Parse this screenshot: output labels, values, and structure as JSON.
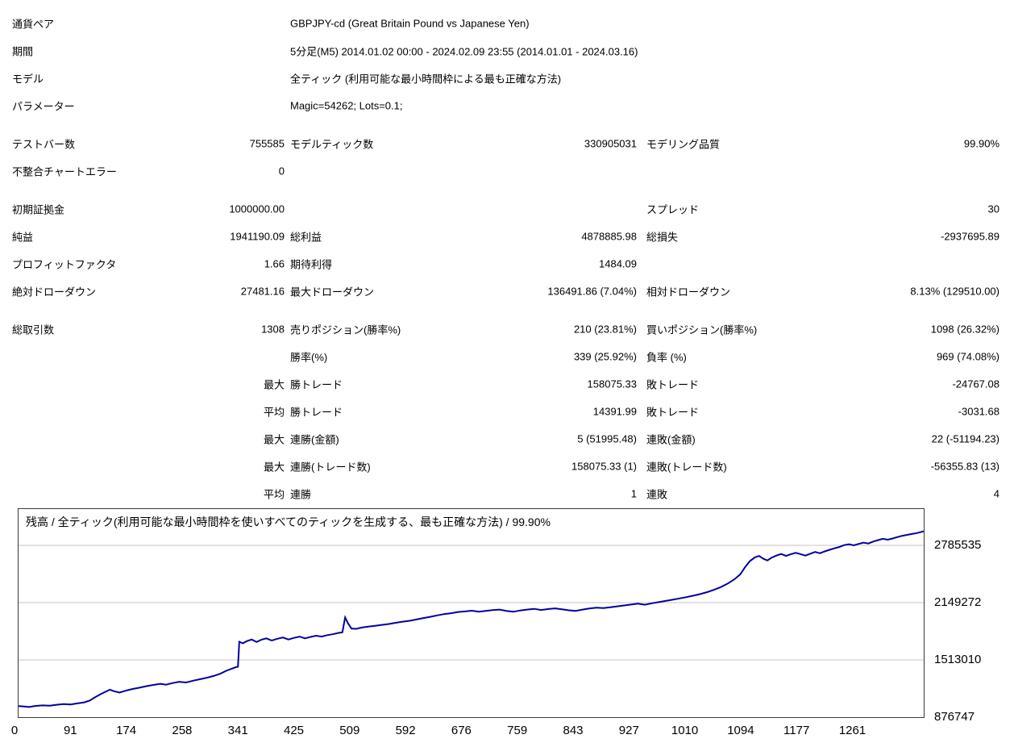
{
  "header": {
    "rows": [
      {
        "label": "通貨ペア",
        "value": "GBPJPY-cd (Great Britain Pound vs Japanese Yen)"
      },
      {
        "label": "期間",
        "value": "5分足(M5) 2014.01.02 00:00 - 2024.02.09 23:55 (2014.01.01 - 2024.03.16)"
      },
      {
        "label": "モデル",
        "value": "全ティック (利用可能な最小時間枠による最も正確な方法)"
      },
      {
        "label": "パラメーター",
        "value": "Magic=54262; Lots=0.1;"
      }
    ]
  },
  "stats": {
    "rows": [
      {
        "c1l": "テストバー数",
        "c1v": "755585",
        "c2l": "モデルティック数",
        "c2v": "330905031",
        "c3l": "モデリング品質",
        "c3v": "99.90%",
        "gap": true
      },
      {
        "c1l": "不整合チャートエラー",
        "c1v": "0"
      },
      {
        "c1l": "初期証拠金",
        "c1v": "1000000.00",
        "c3l": "スプレッド",
        "c3v": "30",
        "gap": true
      },
      {
        "c1l": "純益",
        "c1v": "1941190.09",
        "c2l": "総利益",
        "c2v": "4878885.98",
        "c3l": "総損失",
        "c3v": "-2937695.89"
      },
      {
        "c1l": "プロフィットファクタ",
        "c1v": "1.66",
        "c2l": "期待利得",
        "c2v": "1484.09"
      },
      {
        "c1l": "絶対ドローダウン",
        "c1v": "27481.16",
        "c2l": "最大ドローダウン",
        "c2v": "136491.86 (7.04%)",
        "c3l": "相対ドローダウン",
        "c3v": "8.13% (129510.00)"
      },
      {
        "c1l": "総取引数",
        "c1v": "1308",
        "c2l": "売りポジション(勝率%)",
        "c2v": "210 (23.81%)",
        "c3l": "買いポジション(勝率%)",
        "c3v": "1098 (26.32%)",
        "gap": true
      },
      {
        "c2l": "勝率(%)",
        "c2v": "339 (25.92%)",
        "c3l": "負率 (%)",
        "c3v": "969 (74.08%)"
      },
      {
        "c1v": "最大",
        "c2l": "勝トレード",
        "c2v": "158075.33",
        "c3l": "敗トレード",
        "c3v": "-24767.08"
      },
      {
        "c1v": "平均",
        "c2l": "勝トレード",
        "c2v": "14391.99",
        "c3l": "敗トレード",
        "c3v": "-3031.68"
      },
      {
        "c1v": "最大",
        "c2l": "連勝(金額)",
        "c2v": "5 (51995.48)",
        "c3l": "連敗(金額)",
        "c3v": "22 (-51194.23)"
      },
      {
        "c1v": "最大",
        "c2l": "連勝(トレード数)",
        "c2v": "158075.33 (1)",
        "c3l": "連敗(トレード数)",
        "c3v": "-56355.83 (13)"
      },
      {
        "c1v": "平均",
        "c2l": "連勝",
        "c2v": "1",
        "c3l": "連敗",
        "c3v": "4"
      }
    ]
  },
  "chart_data": {
    "type": "line",
    "title": "残高 / 全ティック(利用可能な最小時間枠を使いすべてのティックを生成する、最も正確な方法) / 99.90%",
    "xlim": [
      0,
      1308
    ],
    "ylim": [
      876747,
      3188857
    ],
    "xticks": [
      0,
      91,
      174,
      258,
      341,
      425,
      509,
      592,
      676,
      759,
      843,
      927,
      1010,
      1094,
      1177,
      1261
    ],
    "yticks": [
      2785535,
      2149272,
      1513010,
      876747
    ],
    "grid": "horizontal",
    "grid_color": "#c6c6c6",
    "border_color": "#3a3a3a",
    "series": [
      {
        "name": "残高",
        "color": "#0000a0",
        "points": [
          [
            0,
            1000000
          ],
          [
            8,
            996000
          ],
          [
            15,
            990000
          ],
          [
            25,
            1002000
          ],
          [
            35,
            1008000
          ],
          [
            45,
            1005000
          ],
          [
            55,
            1015000
          ],
          [
            65,
            1022000
          ],
          [
            75,
            1018000
          ],
          [
            85,
            1030000
          ],
          [
            95,
            1042000
          ],
          [
            103,
            1062000
          ],
          [
            110,
            1095000
          ],
          [
            118,
            1130000
          ],
          [
            126,
            1160000
          ],
          [
            132,
            1182000
          ],
          [
            138,
            1165000
          ],
          [
            146,
            1150000
          ],
          [
            155,
            1172000
          ],
          [
            165,
            1190000
          ],
          [
            175,
            1205000
          ],
          [
            185,
            1222000
          ],
          [
            195,
            1235000
          ],
          [
            205,
            1248000
          ],
          [
            213,
            1238000
          ],
          [
            222,
            1255000
          ],
          [
            232,
            1270000
          ],
          [
            242,
            1262000
          ],
          [
            252,
            1282000
          ],
          [
            262,
            1298000
          ],
          [
            272,
            1315000
          ],
          [
            282,
            1335000
          ],
          [
            292,
            1362000
          ],
          [
            300,
            1392000
          ],
          [
            308,
            1415000
          ],
          [
            314,
            1432000
          ],
          [
            317,
            1438000
          ],
          [
            319,
            1715000
          ],
          [
            324,
            1698000
          ],
          [
            330,
            1722000
          ],
          [
            337,
            1740000
          ],
          [
            344,
            1712000
          ],
          [
            351,
            1738000
          ],
          [
            358,
            1752000
          ],
          [
            366,
            1728000
          ],
          [
            374,
            1748000
          ],
          [
            382,
            1762000
          ],
          [
            390,
            1740000
          ],
          [
            398,
            1758000
          ],
          [
            406,
            1772000
          ],
          [
            414,
            1752000
          ],
          [
            422,
            1768000
          ],
          [
            430,
            1782000
          ],
          [
            438,
            1772000
          ],
          [
            446,
            1788000
          ],
          [
            454,
            1798000
          ],
          [
            462,
            1812000
          ],
          [
            468,
            1820000
          ],
          [
            472,
            1985000
          ],
          [
            476,
            1920000
          ],
          [
            481,
            1862000
          ],
          [
            488,
            1858000
          ],
          [
            496,
            1872000
          ],
          [
            505,
            1882000
          ],
          [
            515,
            1892000
          ],
          [
            525,
            1902000
          ],
          [
            535,
            1912000
          ],
          [
            545,
            1925000
          ],
          [
            555,
            1938000
          ],
          [
            565,
            1948000
          ],
          [
            575,
            1962000
          ],
          [
            585,
            1978000
          ],
          [
            595,
            1992000
          ],
          [
            605,
            2008000
          ],
          [
            615,
            2022000
          ],
          [
            625,
            2032000
          ],
          [
            635,
            2045000
          ],
          [
            645,
            2052000
          ],
          [
            655,
            2060000
          ],
          [
            665,
            2048000
          ],
          [
            675,
            2058000
          ],
          [
            685,
            2066000
          ],
          [
            695,
            2072000
          ],
          [
            705,
            2058000
          ],
          [
            715,
            2048000
          ],
          [
            725,
            2062000
          ],
          [
            735,
            2072000
          ],
          [
            745,
            2080000
          ],
          [
            755,
            2068000
          ],
          [
            765,
            2078000
          ],
          [
            775,
            2086000
          ],
          [
            785,
            2076000
          ],
          [
            795,
            2064000
          ],
          [
            805,
            2058000
          ],
          [
            815,
            2072000
          ],
          [
            825,
            2084000
          ],
          [
            835,
            2094000
          ],
          [
            845,
            2088000
          ],
          [
            855,
            2098000
          ],
          [
            865,
            2108000
          ],
          [
            875,
            2118000
          ],
          [
            885,
            2128000
          ],
          [
            895,
            2138000
          ],
          [
            905,
            2126000
          ],
          [
            915,
            2142000
          ],
          [
            925,
            2155000
          ],
          [
            935,
            2168000
          ],
          [
            945,
            2182000
          ],
          [
            955,
            2196000
          ],
          [
            965,
            2210000
          ],
          [
            975,
            2226000
          ],
          [
            985,
            2244000
          ],
          [
            995,
            2266000
          ],
          [
            1005,
            2292000
          ],
          [
            1015,
            2322000
          ],
          [
            1025,
            2362000
          ],
          [
            1035,
            2412000
          ],
          [
            1043,
            2465000
          ],
          [
            1050,
            2545000
          ],
          [
            1057,
            2612000
          ],
          [
            1064,
            2652000
          ],
          [
            1070,
            2668000
          ],
          [
            1076,
            2638000
          ],
          [
            1082,
            2618000
          ],
          [
            1088,
            2648000
          ],
          [
            1095,
            2672000
          ],
          [
            1102,
            2690000
          ],
          [
            1109,
            2668000
          ],
          [
            1116,
            2688000
          ],
          [
            1123,
            2702000
          ],
          [
            1130,
            2688000
          ],
          [
            1137,
            2672000
          ],
          [
            1144,
            2692000
          ],
          [
            1151,
            2712000
          ],
          [
            1158,
            2698000
          ],
          [
            1165,
            2718000
          ],
          [
            1172,
            2736000
          ],
          [
            1179,
            2752000
          ],
          [
            1186,
            2768000
          ],
          [
            1193,
            2788000
          ],
          [
            1200,
            2798000
          ],
          [
            1207,
            2786000
          ],
          [
            1214,
            2802000
          ],
          [
            1221,
            2816000
          ],
          [
            1228,
            2806000
          ],
          [
            1235,
            2828000
          ],
          [
            1242,
            2844000
          ],
          [
            1249,
            2858000
          ],
          [
            1256,
            2848000
          ],
          [
            1263,
            2862000
          ],
          [
            1270,
            2878000
          ],
          [
            1277,
            2892000
          ],
          [
            1284,
            2902000
          ],
          [
            1291,
            2912000
          ],
          [
            1298,
            2922000
          ],
          [
            1303,
            2932000
          ],
          [
            1308,
            2941190
          ]
        ]
      }
    ]
  }
}
